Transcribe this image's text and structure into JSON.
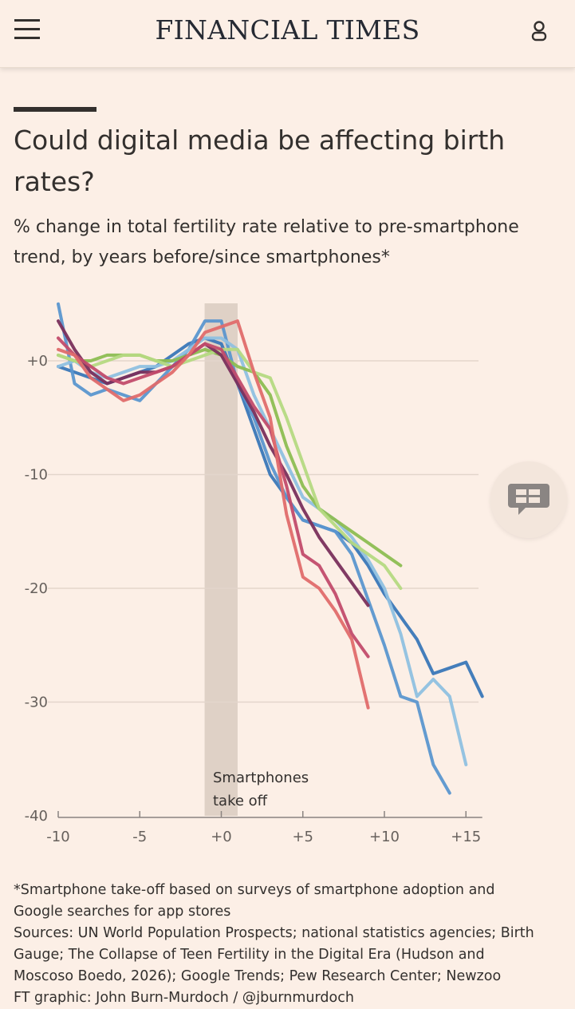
{
  "header": {
    "brand": "FINANCIAL TIMES",
    "menu_icon": "hamburger-icon",
    "user_icon": "user-icon"
  },
  "article": {
    "title": "Could digital media be affecting birth rates?",
    "subtitle": "% change in total fertility rate relative to pre-smartphone trend, by years before/since smartphones*"
  },
  "chart_data": {
    "type": "line",
    "xlim": [
      -10,
      16
    ],
    "ylim": [
      -40,
      5
    ],
    "x_ticks": [
      "-10",
      "-5",
      "+0",
      "+5",
      "+10",
      "+15"
    ],
    "x_tick_values": [
      -10,
      -5,
      0,
      5,
      10,
      15
    ],
    "y_ticks": [
      "+0",
      "-10",
      "-20",
      "-30",
      "-40"
    ],
    "y_tick_values": [
      0,
      -10,
      -20,
      -30,
      -40
    ],
    "grid": true,
    "shaded_band": {
      "from": -1,
      "to": 1
    },
    "annotation": "Smartphones take off",
    "series": [
      {
        "color": "#3a77b8",
        "x": [
          -10,
          -9,
          -8,
          -7,
          -6,
          -5,
          -4,
          -3,
          -2,
          -1,
          0,
          1,
          2,
          3,
          4,
          5,
          6,
          7,
          8,
          9,
          10,
          11,
          12,
          13,
          14,
          15,
          16
        ],
        "y": [
          -0.5,
          -1,
          -1.5,
          -2,
          -1.5,
          -1,
          -0.5,
          0.5,
          1.5,
          2,
          1.5,
          -2,
          -6,
          -10,
          -12,
          -14,
          -14.5,
          -15,
          -16,
          -18,
          -20.5,
          -22.5,
          -24.5,
          -27.5,
          -27,
          -26.5,
          -29.5
        ]
      },
      {
        "color": "#5b96cf",
        "x": [
          -10,
          -9,
          -8,
          -7,
          -6,
          -5,
          -4,
          -3,
          -2,
          -1,
          0,
          1,
          2,
          3,
          4,
          5,
          6,
          7,
          8,
          9,
          10,
          11,
          12,
          13,
          14
        ],
        "y": [
          5,
          -2,
          -3,
          -2.5,
          -3,
          -3.5,
          -2,
          -0.5,
          1,
          3.5,
          3.5,
          -2,
          -5,
          -9,
          -12,
          -14,
          -14.5,
          -15,
          -17,
          -21,
          -25,
          -29.5,
          -30,
          -35.5,
          -38
        ]
      },
      {
        "color": "#8fc0e0",
        "x": [
          -10,
          -9,
          -8,
          -7,
          -6,
          -5,
          -4,
          -3,
          -2,
          -1,
          0,
          1,
          2,
          3,
          4,
          5,
          6,
          7,
          8,
          9,
          10,
          11,
          12,
          13,
          14,
          15
        ],
        "y": [
          -0.5,
          0,
          -1,
          -1.5,
          -1,
          -0.5,
          -0.5,
          0,
          1,
          2,
          2,
          1,
          -3,
          -6,
          -9,
          -12,
          -13,
          -14,
          -15.5,
          -17.5,
          -20,
          -24,
          -29.5,
          -28,
          -29.5,
          -35.5
        ]
      },
      {
        "color": "#8dbd52",
        "x": [
          -10,
          -9,
          -8,
          -7,
          -6,
          -5,
          -4,
          -3,
          -2,
          -1,
          0,
          1,
          2,
          3,
          4,
          5,
          6,
          7,
          8,
          9,
          10,
          11
        ],
        "y": [
          0.5,
          0,
          0,
          0.5,
          0.5,
          0.5,
          0,
          0,
          0.5,
          1,
          0.5,
          -0.5,
          -1,
          -3,
          -7.5,
          -11,
          -13,
          -14,
          -15,
          -16,
          -17,
          -18
        ]
      },
      {
        "color": "#b5d982",
        "x": [
          -10,
          -9,
          -8,
          -7,
          -6,
          -5,
          -4,
          -3,
          -2,
          -1,
          0,
          1,
          2,
          3,
          4,
          5,
          6,
          7,
          8,
          9,
          10,
          11
        ],
        "y": [
          0.5,
          0,
          -0.5,
          0,
          0.5,
          0.5,
          0,
          -0.5,
          0,
          0.5,
          1,
          1,
          -1,
          -1.5,
          -5,
          -9,
          -13,
          -14.5,
          -16,
          -17,
          -18,
          -20
        ]
      },
      {
        "color": "#7a2f5c",
        "x": [
          -10,
          -9,
          -8,
          -7,
          -6,
          -5,
          -4,
          -3,
          -2,
          -1,
          0,
          1,
          2,
          3,
          4,
          5,
          6,
          7,
          8,
          9
        ],
        "y": [
          3.5,
          1,
          -1,
          -2,
          -1.5,
          -1,
          -1,
          -0.5,
          0.5,
          1.5,
          0.5,
          -2,
          -4.5,
          -7.5,
          -10,
          -13,
          -15.5,
          -17.5,
          -19.5,
          -21.5
        ]
      },
      {
        "color": "#c24b6b",
        "x": [
          -10,
          -9,
          -8,
          -7,
          -6,
          -5,
          -4,
          -3,
          -2,
          -1,
          0,
          1,
          2,
          3,
          4,
          5,
          6,
          7,
          8,
          9
        ],
        "y": [
          2,
          0.5,
          -0.5,
          -1.5,
          -2,
          -1.5,
          -1,
          -0.5,
          0.5,
          1.5,
          1,
          -1.5,
          -4,
          -6,
          -11,
          -17,
          -18,
          -20.5,
          -24,
          -26
        ]
      },
      {
        "color": "#e06b6b",
        "x": [
          -10,
          -9,
          -8,
          -7,
          -6,
          -5,
          -4,
          -3,
          -2,
          -1,
          0,
          1,
          2,
          3,
          4,
          5,
          6,
          7,
          8,
          9
        ],
        "y": [
          1,
          0.5,
          -1.5,
          -2.5,
          -3.5,
          -3,
          -2,
          -1,
          0.5,
          2.5,
          3,
          3.5,
          -1,
          -5,
          -13.5,
          -19,
          -20,
          -22,
          -24.5,
          -30.5
        ]
      }
    ]
  },
  "footnotes": {
    "note1": "*Smartphone take-off based on surveys of smartphone adoption and",
    "note2": "Google searches for app stores",
    "sources1": "Sources: UN World Population Prospects; national statistics agencies; Birth",
    "sources2": "Gauge; The Collapse of Teen Fertility in the Digital Era (Hudson and",
    "sources3": "Moscoso Boedo, 2026); Google Trends; Pew Research Center; Newzoo",
    "credit": "FT graphic: John Burn-Murdoch / @jburnmurdoch"
  },
  "comment_button": {
    "icon": "comment-icon"
  }
}
